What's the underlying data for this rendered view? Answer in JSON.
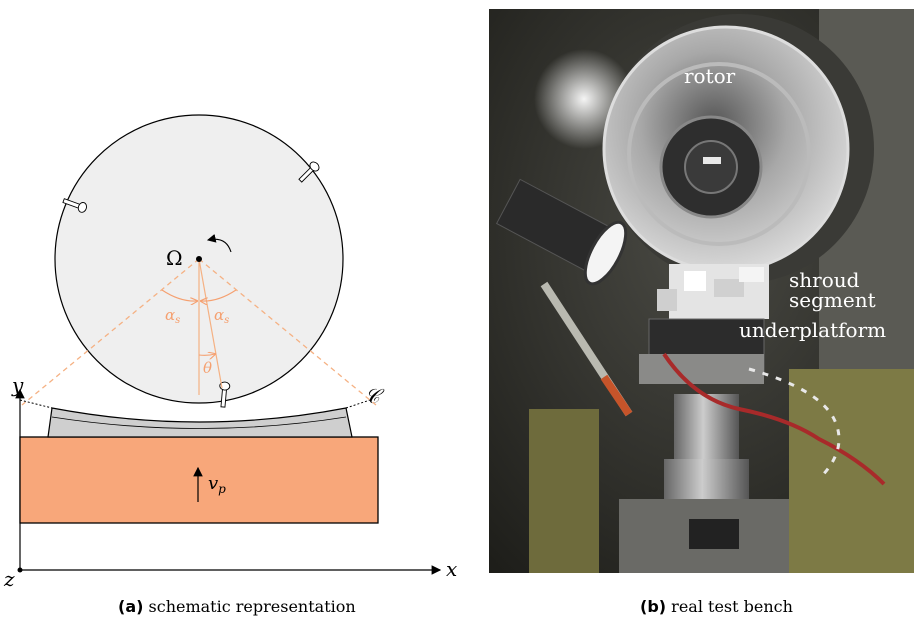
{
  "panel_a": {
    "caption_tag": "(a)",
    "caption_text": "schematic representation",
    "labels": {
      "omega": "Ω",
      "alpha_left": "α",
      "alpha_right": "α",
      "alpha_sub": "s",
      "theta": "θ",
      "curve": "𝒞",
      "velocity": "v",
      "velocity_sub": "p",
      "axis_x": "x",
      "axis_y": "y",
      "axis_z": "z"
    },
    "colors": {
      "rotor_fill": "#efefef",
      "shroud_fill": "#cfcfcf",
      "base_fill": "#f8a77a",
      "angle_lines": "#f5b183"
    }
  },
  "panel_b": {
    "caption_tag": "(b)",
    "caption_text": "real test bench",
    "labels": {
      "rotor": "rotor",
      "shroud": "shroud",
      "segment": "segment",
      "underplatform": "underplatform"
    }
  }
}
